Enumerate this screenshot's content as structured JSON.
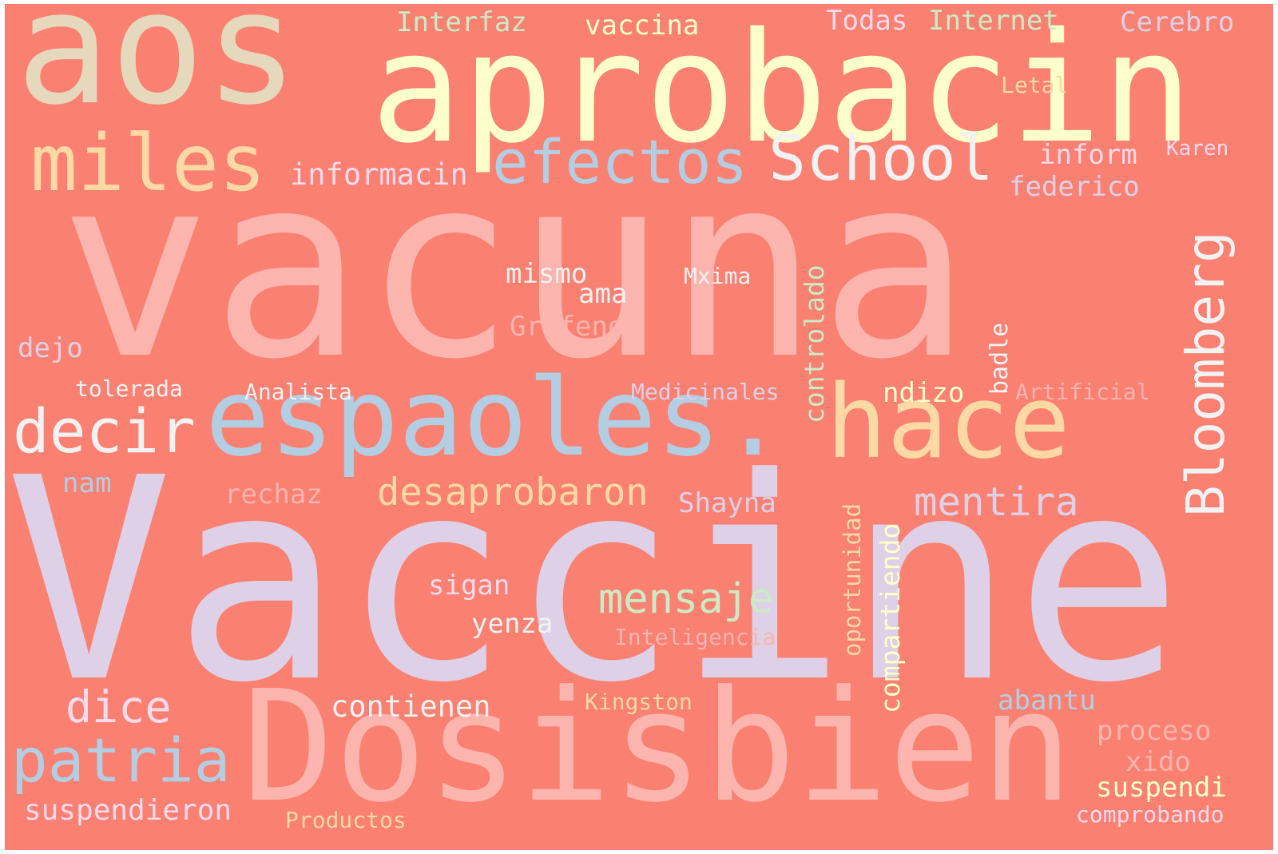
{
  "words": [
    {
      "id": "vaccine",
      "text": "Vaccine",
      "color": "#ded0e6"
    },
    {
      "id": "vacuna",
      "text": "vacuna",
      "color": "#fbb4ae"
    },
    {
      "id": "dosisbien",
      "text": "Dosisbien",
      "color": "#fbb4ae"
    },
    {
      "id": "aprobacin",
      "text": "aprobacin",
      "color": "#ffffcc"
    },
    {
      "id": "aos",
      "text": "aos",
      "color": "#e5d8bd"
    },
    {
      "id": "espaoles",
      "text": "espaoles.",
      "color": "#b3cde3"
    },
    {
      "id": "hace",
      "text": "hace",
      "color": "#fed9a6"
    },
    {
      "id": "miles",
      "text": "miles",
      "color": "#fed9a6"
    },
    {
      "id": "efectos",
      "text": "efectos",
      "color": "#b3cde3"
    },
    {
      "id": "school",
      "text": "School",
      "color": "#f2f2f2"
    },
    {
      "id": "bloomberg",
      "text": "Bloomberg",
      "color": "#f2f2f2"
    },
    {
      "id": "decir",
      "text": "decir",
      "color": "#f2f2f2"
    },
    {
      "id": "patria",
      "text": "patria",
      "color": "#b3cde3"
    },
    {
      "id": "mensaje",
      "text": "mensaje",
      "color": "#ccebc5"
    },
    {
      "id": "desaprobaron",
      "text": "desaprobaron",
      "color": "#fed9a6"
    },
    {
      "id": "mentira",
      "text": "mentira",
      "color": "#ded0e6"
    },
    {
      "id": "dice",
      "text": "dice",
      "color": "#fddaec"
    },
    {
      "id": "informacin",
      "text": "informacin",
      "color": "#fddaec"
    },
    {
      "id": "compartiendo",
      "text": "compartiendo",
      "color": "#ffffcc"
    },
    {
      "id": "controlado",
      "text": "controlado",
      "color": "#ccebc5"
    },
    {
      "id": "oportunidad",
      "text": "oportunidad",
      "color": "#fed9a6"
    },
    {
      "id": "contienen",
      "text": "contienen",
      "color": "#f2f2f2"
    },
    {
      "id": "suspendieron",
      "text": "suspendieron",
      "color": "#fddaec"
    },
    {
      "id": "interfaz",
      "text": "Interfaz",
      "color": "#ccebc5"
    },
    {
      "id": "vaccina",
      "text": "vaccina",
      "color": "#ffffcc"
    },
    {
      "id": "todas",
      "text": "Todas",
      "color": "#fddaec"
    },
    {
      "id": "internet",
      "text": "Internet",
      "color": "#ccebc5"
    },
    {
      "id": "cerebro",
      "text": "Cerebro",
      "color": "#ded0e6"
    },
    {
      "id": "letal",
      "text": "Letal",
      "color": "#fed9a6"
    },
    {
      "id": "inform",
      "text": "inform",
      "color": "#fddaec"
    },
    {
      "id": "karen",
      "text": "Karen",
      "color": "#fddaec"
    },
    {
      "id": "federico",
      "text": "federico",
      "color": "#ded0e6"
    },
    {
      "id": "mismo",
      "text": "mismo",
      "color": "#f2f2f2"
    },
    {
      "id": "ama",
      "text": "ama",
      "color": "#f2f2f2"
    },
    {
      "id": "mxima",
      "text": "Mxima",
      "color": "#f2f2f2"
    },
    {
      "id": "grafeno",
      "text": "Grafeno",
      "color": "#fbb4ae"
    },
    {
      "id": "dejo",
      "text": "dejo",
      "color": "#ded0e6"
    },
    {
      "id": "tolerada",
      "text": "tolerada",
      "color": "#f2f2f2"
    },
    {
      "id": "analista",
      "text": "Analista",
      "color": "#f2f2f2"
    },
    {
      "id": "medicinales",
      "text": "Medicinales",
      "color": "#ded0e6"
    },
    {
      "id": "ndizo",
      "text": "ndizo",
      "color": "#ffffcc"
    },
    {
      "id": "badle",
      "text": "badle",
      "color": "#f2f2f2"
    },
    {
      "id": "artificial",
      "text": "Artificial",
      "color": "#fbb4ae"
    },
    {
      "id": "nam",
      "text": "nam",
      "color": "#b3cde3"
    },
    {
      "id": "rechaz",
      "text": "rechaz",
      "color": "#fbb4ae"
    },
    {
      "id": "shayna",
      "text": "Shayna",
      "color": "#ded0e6"
    },
    {
      "id": "sigan",
      "text": "sigan",
      "color": "#fddaec"
    },
    {
      "id": "yenza",
      "text": "yenza",
      "color": "#f2f2f2"
    },
    {
      "id": "inteligencia",
      "text": "Inteligencia",
      "color": "#fbb4ae"
    },
    {
      "id": "kingston",
      "text": "Kingston",
      "color": "#fed9a6"
    },
    {
      "id": "abantu",
      "text": "abantu",
      "color": "#b3cde3"
    },
    {
      "id": "proceso",
      "text": "proceso",
      "color": "#fbb4ae"
    },
    {
      "id": "xido",
      "text": "xido",
      "color": "#fbb4ae"
    },
    {
      "id": "suspendi",
      "text": "suspendi",
      "color": "#ffffcc"
    },
    {
      "id": "comprobando",
      "text": "comprobando",
      "color": "#fddaec"
    },
    {
      "id": "productos",
      "text": "Productos",
      "color": "#fed9a6"
    }
  ]
}
